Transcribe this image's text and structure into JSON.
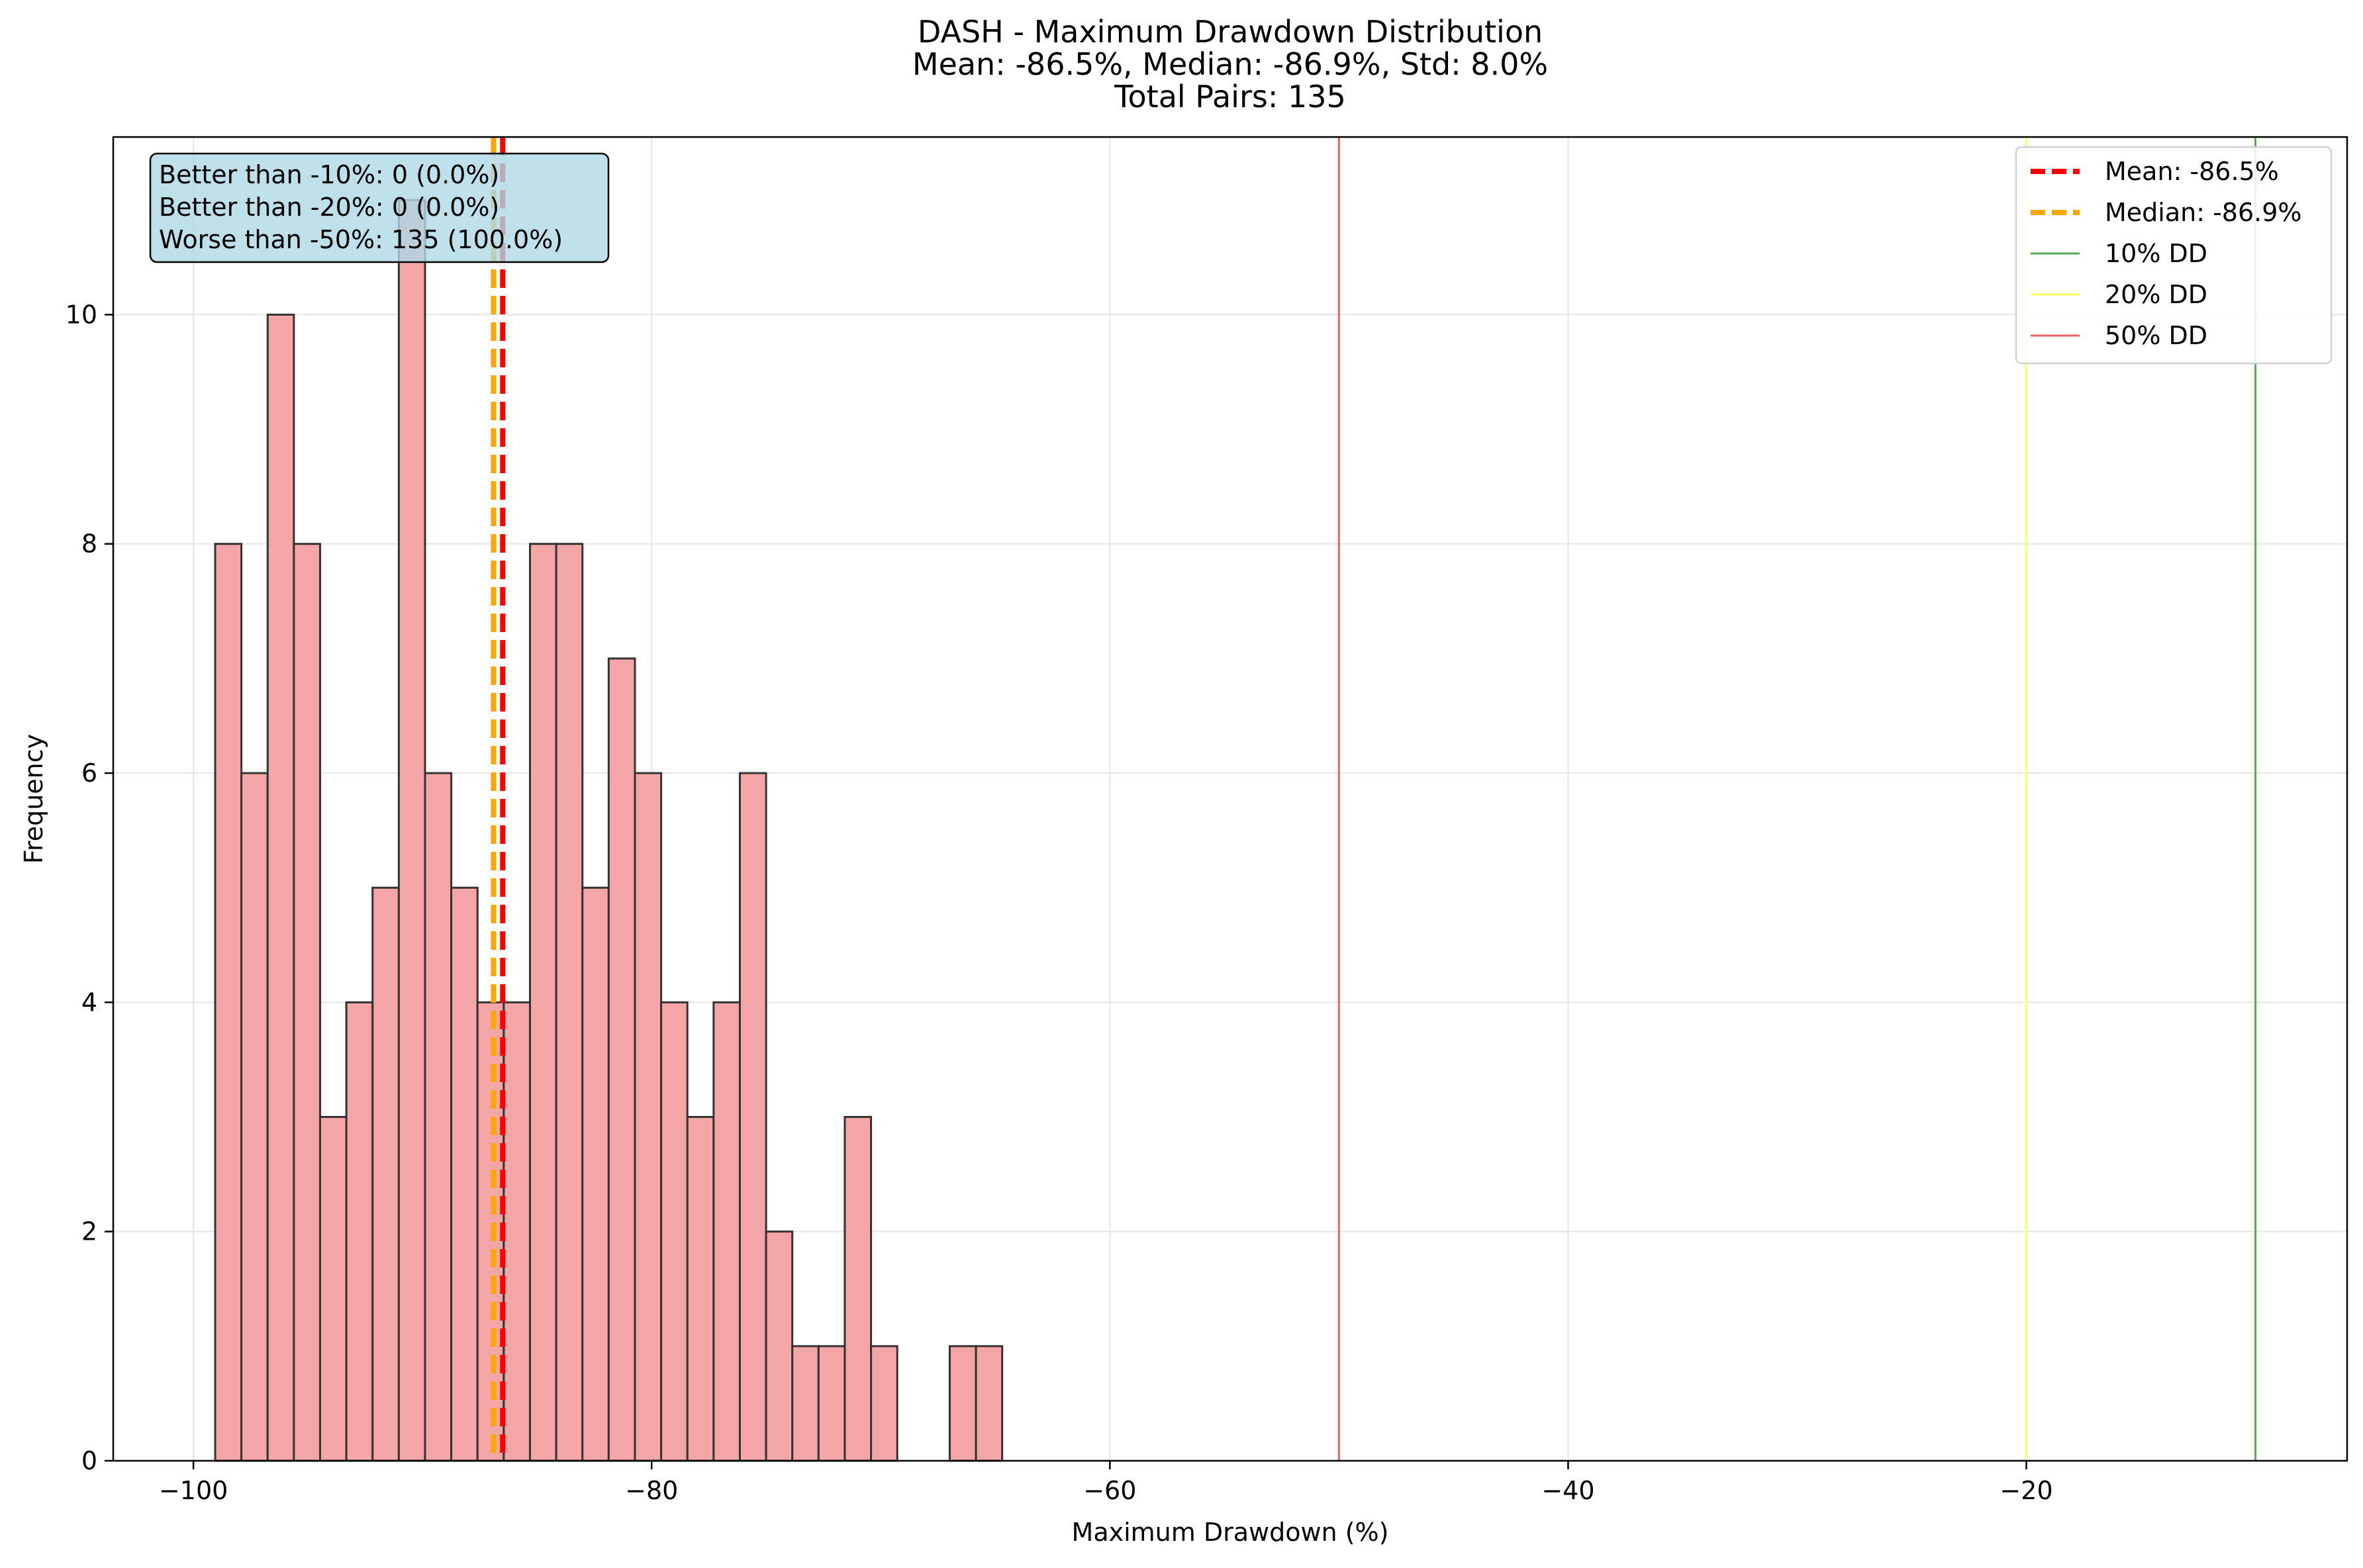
{
  "chart_data": {
    "type": "bar",
    "title_lines": [
      "DASH - Maximum Drawdown Distribution",
      "Mean: -86.5%, Median: -86.9%, Std: 8.0%",
      "Total Pairs: 135"
    ],
    "xlabel": "Maximum Drawdown (%)",
    "ylabel": "Frequency",
    "xlim": [
      -103.5,
      -6.0
    ],
    "ylim": [
      0,
      11.55
    ],
    "xticks": [
      -100,
      -80,
      -60,
      -40,
      -20
    ],
    "xtick_labels": [
      "−100",
      "−80",
      "−60",
      "−40",
      "−20"
    ],
    "yticks": [
      0,
      2,
      4,
      6,
      8,
      10
    ],
    "ytick_labels": [
      "0",
      "2",
      "4",
      "6",
      "8",
      "10"
    ],
    "grid": true,
    "bins": {
      "edges": [
        -99.05,
        -97.905,
        -96.76,
        -95.615,
        -94.47,
        -93.325,
        -92.18,
        -91.035,
        -89.89,
        -88.745,
        -87.6,
        -86.455,
        -85.31,
        -84.165,
        -83.02,
        -81.875,
        -80.73,
        -79.585,
        -78.44,
        -77.295,
        -76.15,
        -75.005,
        -73.86,
        -72.715,
        -71.57,
        -70.425,
        -69.28,
        -68.135,
        -66.99,
        -65.845,
        -64.7
      ],
      "counts": [
        8,
        6,
        10,
        8,
        3,
        4,
        5,
        11,
        6,
        5,
        4,
        4,
        8,
        8,
        5,
        7,
        6,
        4,
        3,
        4,
        6,
        2,
        1,
        1,
        3,
        1,
        0,
        0,
        1,
        1
      ]
    },
    "bar_color": "#f4a5a5",
    "bar_edge_color": "#333333",
    "reference_lines": [
      {
        "x": -86.5,
        "label": "Mean: -86.5%",
        "color": "#ff0000",
        "style": "dashed"
      },
      {
        "x": -86.9,
        "label": "Median: -86.9%",
        "color": "#ffa500",
        "style": "dashed"
      },
      {
        "x": -10,
        "label": "10% DD",
        "color": "#4caf50",
        "style": "solid"
      },
      {
        "x": -20,
        "label": "20% DD",
        "color": "#ffff66",
        "style": "solid"
      },
      {
        "x": -50,
        "label": "50% DD",
        "color": "#f06060",
        "style": "solid"
      }
    ],
    "legend_position": "top-right",
    "stats_box": {
      "lines": [
        "Better than -10%: 0 (0.0%)",
        "Better than -20%: 0 (0.0%)",
        "Worse than -50%: 135 (100.0%)"
      ],
      "background": "#add8e6",
      "position": "top-left"
    }
  }
}
